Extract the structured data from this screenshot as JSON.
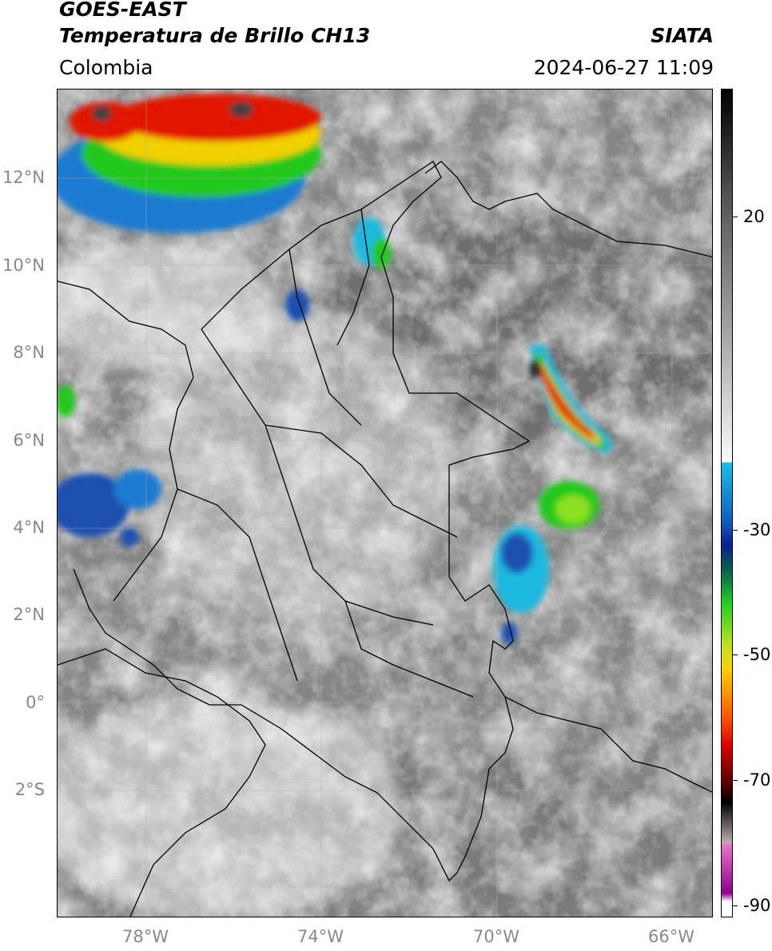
{
  "header": {
    "title_line1": "GOES-EAST",
    "title_line2": "Temperatura de Brillo CH13",
    "organization": "SIATA",
    "region": "Colombia",
    "datetime": "2024-06-27 11:09"
  },
  "axes": {
    "lat_labels": [
      "12°N",
      "10°N",
      "8°N",
      "6°N",
      "4°N",
      "2°N",
      "0°",
      "2°S"
    ],
    "lon_labels": [
      "78°W",
      "74°W",
      "70°W",
      "66°W"
    ]
  },
  "colorbar": {
    "labels": [
      "20",
      "-30",
      "-50",
      "-70",
      "-90"
    ],
    "colors": [
      "#000000",
      "#8a8a8a",
      "#ffffff",
      "#18b4e0",
      "#0a2090",
      "#18d018",
      "#ffd000",
      "#e00000",
      "#000000",
      "#b0b0b0",
      "#e060c0",
      "#800080"
    ]
  },
  "map": {
    "background": "#8e8e8e",
    "gridline_color": "#aaaaaa"
  }
}
